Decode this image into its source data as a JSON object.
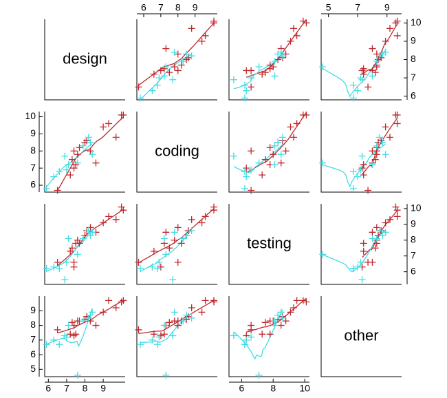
{
  "chart_data": {
    "type": "splom",
    "variables": [
      {
        "name": "design",
        "lim": [
          5.8,
          10.2
        ],
        "xticks": [
          6,
          7,
          8,
          9
        ],
        "yticks": [
          6,
          7,
          8,
          9,
          10
        ]
      },
      {
        "name": "coding",
        "lim": [
          5.6,
          10.3
        ],
        "xticks": [
          6,
          7,
          8,
          9
        ],
        "yticks": [
          6,
          7,
          8,
          9,
          10
        ]
      },
      {
        "name": "testing",
        "lim": [
          5.2,
          10.3
        ],
        "xticks": [
          6,
          8,
          10
        ],
        "yticks": [
          6,
          7,
          8,
          9,
          10
        ]
      },
      {
        "name": "other",
        "lim": [
          4.5,
          10.0
        ],
        "xticks": [
          5,
          7,
          9
        ],
        "yticks": [
          5,
          6,
          7,
          8,
          9
        ]
      }
    ],
    "series": [
      {
        "color": "#c0262b",
        "values": [
          [
            6.5,
            5.7,
            6.6,
            7.7
          ],
          [
            7.2,
            6.6,
            7.3,
            7.4
          ],
          [
            7.4,
            7.0,
            6.3,
            7.3
          ],
          [
            7.5,
            7.2,
            7.8,
            7.4
          ],
          [
            7.3,
            7.5,
            7.5,
            8.2
          ],
          [
            7.6,
            7.8,
            8.0,
            8.3
          ],
          [
            7.4,
            8.0,
            6.6,
            8.0
          ],
          [
            7.7,
            8.2,
            7.8,
            8.3
          ],
          [
            8.0,
            8.5,
            8.3,
            8.4
          ],
          [
            8.1,
            8.6,
            8.6,
            8.6
          ],
          [
            8.3,
            8.0,
            8.8,
            8.3
          ],
          [
            8.6,
            7.3,
            8.5,
            8.0
          ],
          [
            9.0,
            9.4,
            9.1,
            8.9
          ],
          [
            9.3,
            9.6,
            9.5,
            9.7
          ],
          [
            9.7,
            8.8,
            9.3,
            9.2
          ],
          [
            10.0,
            10.1,
            10.1,
            9.6
          ],
          [
            10.1,
            10.1,
            9.9,
            9.7
          ]
        ]
      },
      {
        "color": "#3fdce4",
        "values": [
          [
            5.9,
            5.8,
            6.2,
            6.7
          ],
          [
            6.3,
            6.5,
            6.3,
            7.0
          ],
          [
            6.6,
            6.8,
            6.2,
            6.7
          ],
          [
            6.9,
            7.7,
            5.5,
            7.3
          ],
          [
            7.0,
            6.9,
            6.6,
            7.2
          ],
          [
            7.1,
            7.2,
            8.1,
            8.0
          ],
          [
            7.6,
            7.3,
            7.1,
            4.6
          ],
          [
            7.9,
            8.3,
            8.1,
            8.3
          ],
          [
            8.2,
            8.8,
            8.6,
            8.5
          ],
          [
            8.3,
            8.5,
            8.3,
            8.7
          ],
          [
            8.4,
            7.8,
            8.5,
            8.9
          ]
        ]
      }
    ],
    "smooth": true
  }
}
